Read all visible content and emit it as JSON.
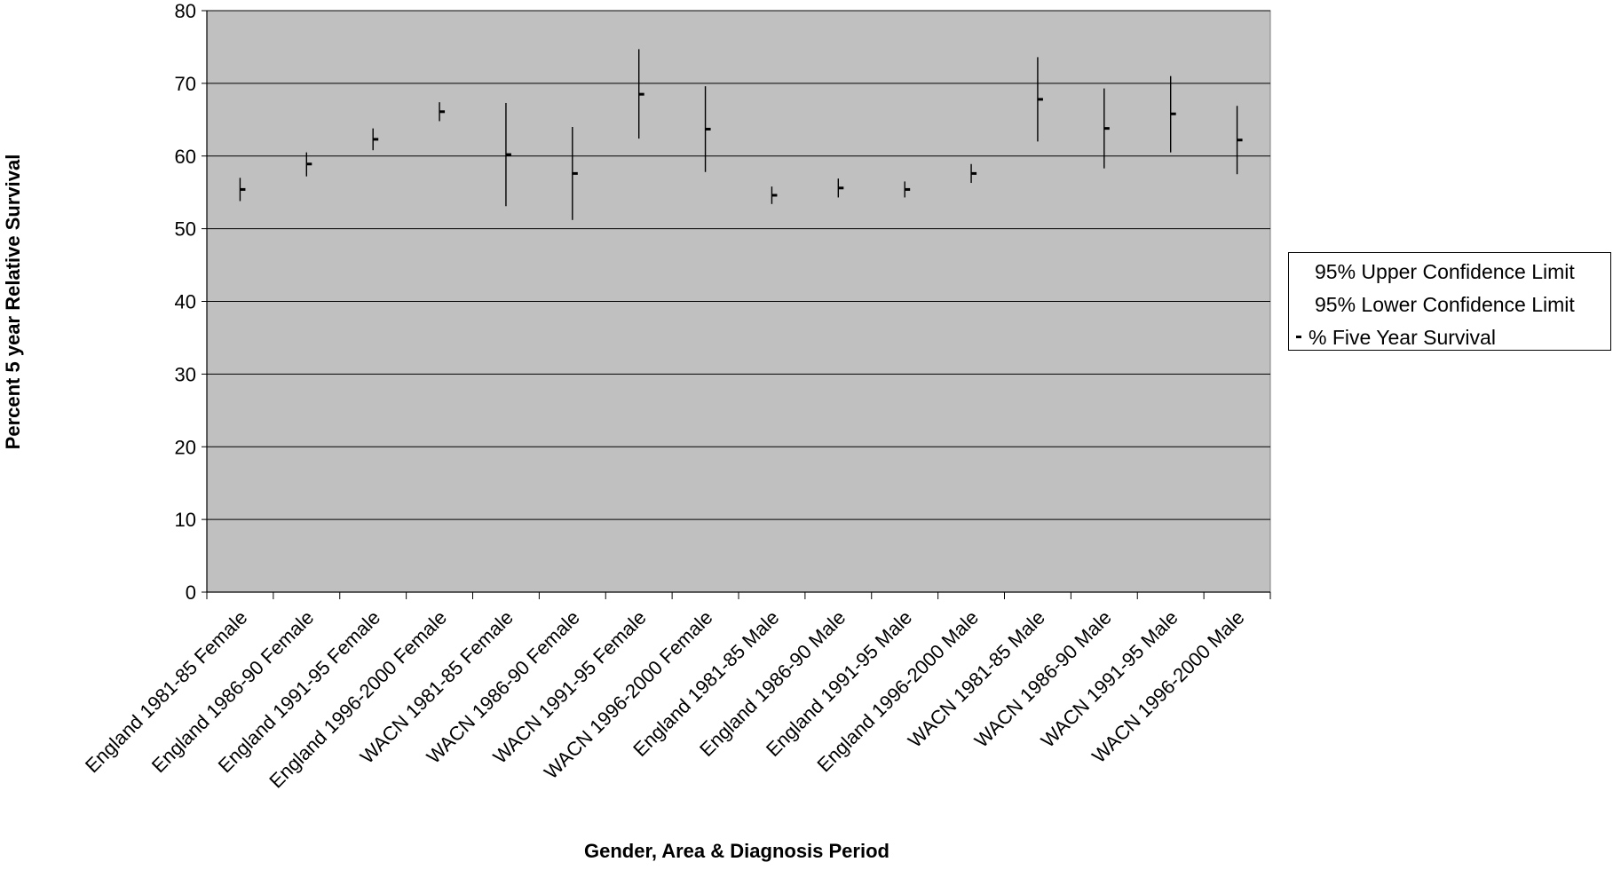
{
  "chart_data": {
    "type": "scatter",
    "subtype": "high-low-close",
    "title": "",
    "xlabel": "Gender, Area & Diagnosis Period",
    "ylabel": "Percent 5 year Relative Survival",
    "ylim": [
      0,
      80
    ],
    "yticks": [
      0,
      10,
      20,
      30,
      40,
      50,
      60,
      70,
      80
    ],
    "grid": true,
    "plot_background": "#c0c0c0",
    "legend_position": "right",
    "categories": [
      "England 1981-85 Female",
      "England 1986-90 Female",
      "England 1991-95 Female",
      "England 1996-2000 Female",
      "WACN 1981-85 Female",
      "WACN 1986-90 Female",
      "WACN 1991-95 Female",
      "WACN 1996-2000 Female",
      "England 1981-85 Male",
      "England 1986-90 Male",
      "England 1991-95 Male",
      "England 1996-2000 Male",
      "WACN 1981-85 Male",
      "WACN 1986-90 Male",
      "WACN 1991-95 Male",
      "WACN 1996-2000 Male"
    ],
    "series": [
      {
        "name": "95% Upper Confidence Limit",
        "values": [
          57.0,
          60.5,
          63.8,
          67.4,
          67.3,
          64.0,
          74.7,
          69.6,
          55.8,
          56.9,
          56.5,
          58.9,
          73.6,
          69.3,
          71.0,
          66.9
        ]
      },
      {
        "name": "95% Lower Confidence Limit",
        "values": [
          53.8,
          57.2,
          60.8,
          64.8,
          53.1,
          51.2,
          62.4,
          57.8,
          53.4,
          54.3,
          54.3,
          56.3,
          62.0,
          58.3,
          60.5,
          57.5
        ]
      },
      {
        "name": "% Five Year Survival",
        "values": [
          55.4,
          58.9,
          62.3,
          66.1,
          60.2,
          57.6,
          68.5,
          63.7,
          54.6,
          55.6,
          55.4,
          57.6,
          67.8,
          63.8,
          65.8,
          62.2
        ]
      }
    ]
  }
}
